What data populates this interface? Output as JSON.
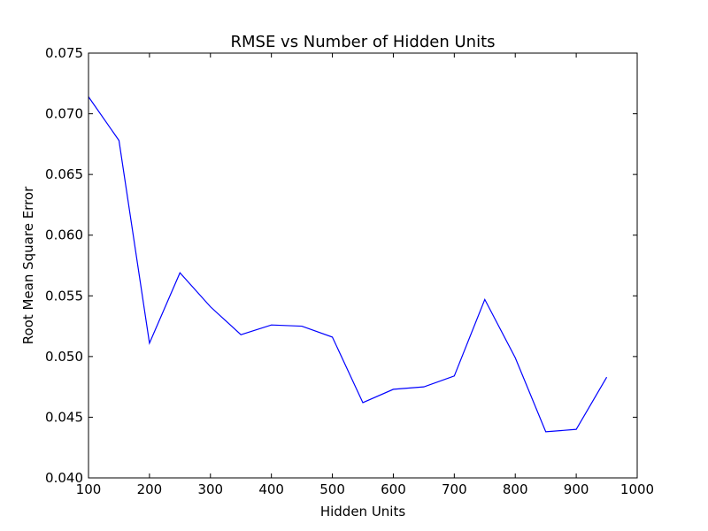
{
  "chart_data": {
    "type": "line",
    "title": "RMSE vs Number of Hidden Units",
    "xlabel": "Hidden Units",
    "ylabel": "Root Mean Square Error",
    "xlim": [
      100,
      1000
    ],
    "ylim": [
      0.04,
      0.075
    ],
    "xticks": [
      100,
      200,
      300,
      400,
      500,
      600,
      700,
      800,
      900,
      1000
    ],
    "xtick_labels": [
      "100",
      "200",
      "300",
      "400",
      "500",
      "600",
      "700",
      "800",
      "900",
      "1000"
    ],
    "yticks": [
      0.04,
      0.045,
      0.05,
      0.055,
      0.06,
      0.065,
      0.07,
      0.075
    ],
    "ytick_labels": [
      "0.040",
      "0.045",
      "0.050",
      "0.055",
      "0.060",
      "0.065",
      "0.070",
      "0.075"
    ],
    "grid": false,
    "series": [
      {
        "color": "#0000ff",
        "x": [
          100,
          150,
          200,
          250,
          300,
          350,
          400,
          450,
          500,
          550,
          600,
          650,
          700,
          750,
          800,
          850,
          900,
          950
        ],
        "y": [
          0.0714,
          0.0678,
          0.0511,
          0.0569,
          0.0541,
          0.0518,
          0.0526,
          0.0525,
          0.0516,
          0.0462,
          0.0473,
          0.0475,
          0.0484,
          0.0547,
          0.0499,
          0.0438,
          0.044,
          0.0483
        ]
      }
    ]
  }
}
